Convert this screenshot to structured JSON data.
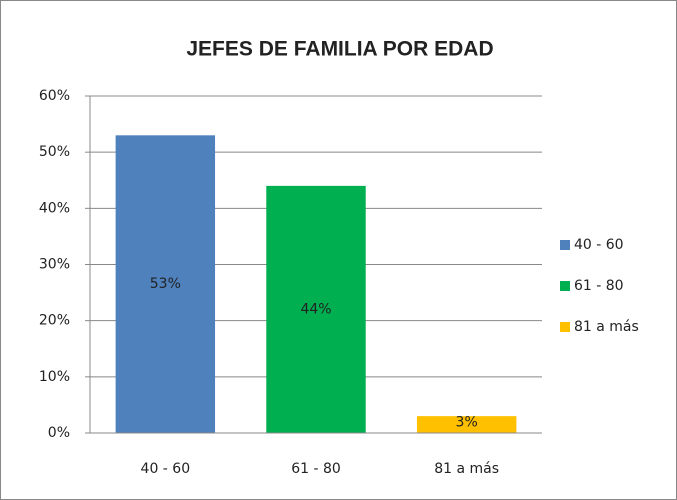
{
  "chart_data": {
    "type": "bar",
    "title": "JEFES DE FAMILIA POR EDAD",
    "categories": [
      "40 - 60",
      "61 - 80",
      "81 a más"
    ],
    "values": [
      53,
      44,
      3
    ],
    "value_labels": [
      "53%",
      "44%",
      "3%"
    ],
    "colors": [
      "#4f81bd",
      "#00b050",
      "#ffc000"
    ],
    "ylim": [
      0,
      60
    ],
    "yticks": [
      {
        "value": 0,
        "label": "0%"
      },
      {
        "value": 10,
        "label": "10%"
      },
      {
        "value": 20,
        "label": "20%"
      },
      {
        "value": 30,
        "label": "30%"
      },
      {
        "value": 40,
        "label": "40%"
      },
      {
        "value": 50,
        "label": "50%"
      },
      {
        "value": 60,
        "label": "60%"
      }
    ],
    "grid": true,
    "legend": "right"
  }
}
